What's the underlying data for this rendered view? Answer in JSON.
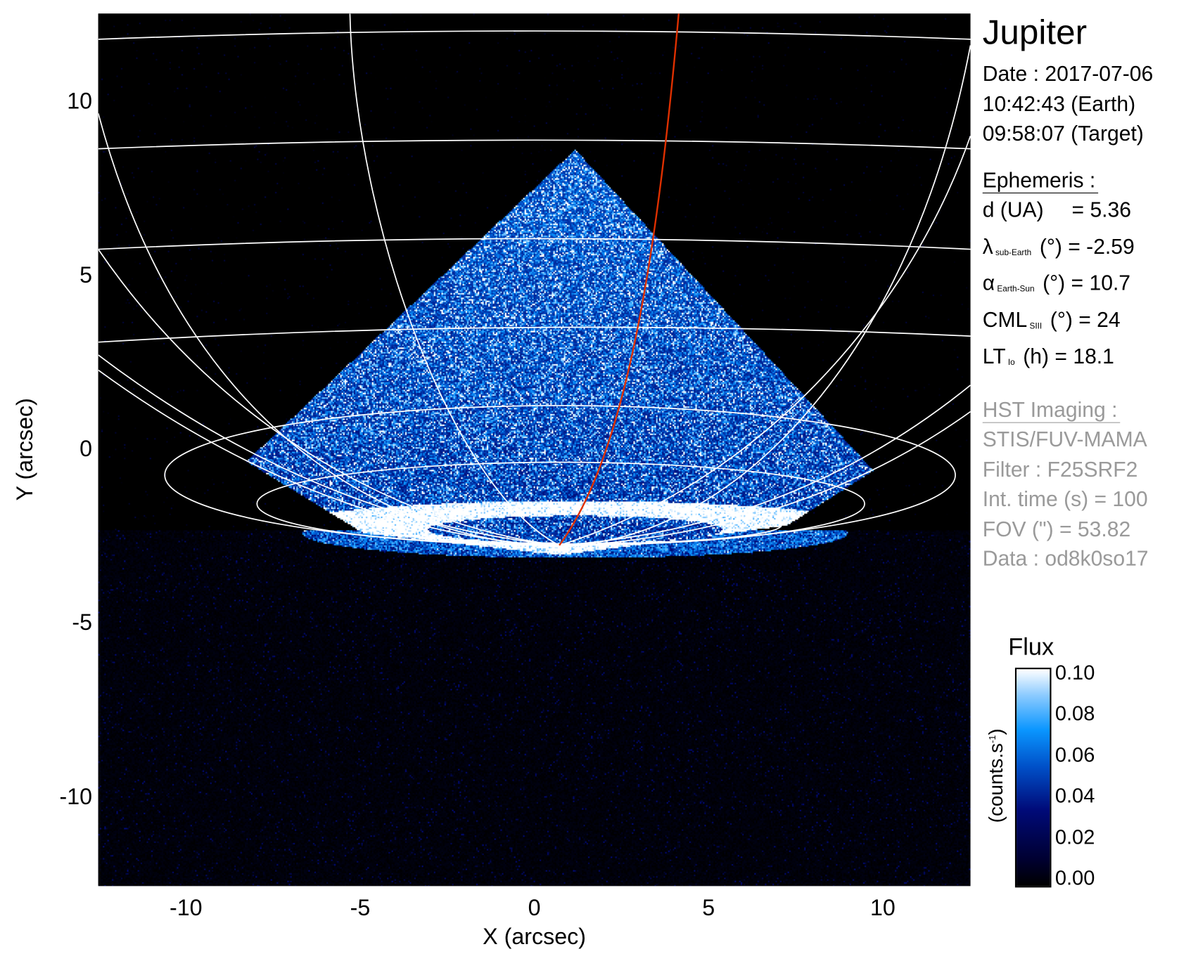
{
  "chart_data": {
    "type": "heatmap",
    "title": "Jupiter",
    "xlabel": "X (arcsec)",
    "ylabel": "Y (arcsec)",
    "xlim": [
      -12.5,
      12.5
    ],
    "ylim": [
      -12.5,
      12.5
    ],
    "xticks": [
      "-10",
      "-5",
      "0",
      "5",
      "10"
    ],
    "xtick_values": [
      -10,
      -5,
      0,
      5,
      10
    ],
    "yticks": [
      "-10",
      "-5",
      "0",
      "5",
      "10"
    ],
    "ytick_values": [
      -10,
      -5,
      0,
      5,
      10
    ],
    "grid": true,
    "colormap": [
      "#000000",
      "#000a78",
      "#0050c8",
      "#0a96ff",
      "#ffffff"
    ],
    "grid_color": "#ffffff",
    "meridian_highlight_color": "#e03000",
    "colorbar": {
      "title": "Flux",
      "unit": "(counts.s",
      "unit_sup": "-1",
      "unit_close": ")",
      "range": [
        0.0,
        0.1
      ],
      "ticks": [
        "0.00",
        "0.02",
        "0.04",
        "0.06",
        "0.08",
        "0.10"
      ],
      "tick_values": [
        0,
        0.02,
        0.04,
        0.06,
        0.08,
        0.1
      ]
    }
  },
  "panel": {
    "title": "Jupiter",
    "date": "Date : 2017-07-06",
    "time_earth": "10:42:43 (Earth)",
    "time_target": "09:58:07 (Target)",
    "ephemeris_header": "Ephemeris :",
    "ephemeris": [
      {
        "label": "d (UA)",
        "sub": "",
        "value": "   = 5.36"
      },
      {
        "label": "λ",
        "sub": "sub-Earth",
        "value": "(°) = -2.59"
      },
      {
        "label": "α",
        "sub": "Earth-Sun",
        "value": "(°) = 10.7"
      },
      {
        "label": "CML",
        "sub": "SIII",
        "value": "(°) = 24"
      },
      {
        "label": "LT",
        "sub": "Io",
        "value": "(h) = 18.1"
      }
    ],
    "hst_header": "HST Imaging :",
    "hst": [
      "STIS/FUV-MAMA",
      "Filter : F25SRF2",
      "Int. time (s) = 100",
      "FOV (\") = 53.82",
      "Data : od8k0so17"
    ]
  }
}
